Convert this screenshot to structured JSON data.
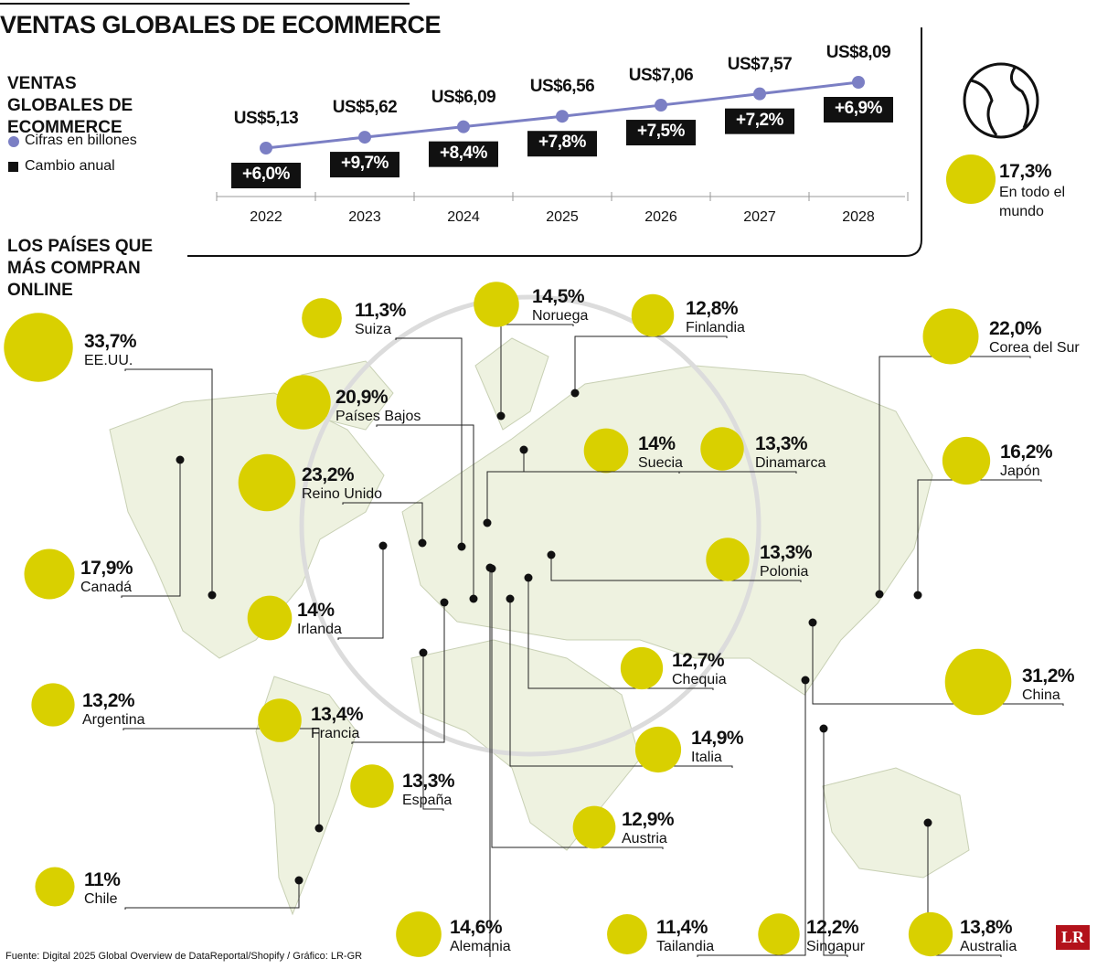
{
  "title": "VENTAS GLOBALES DE ECOMMERCE",
  "chart_data": [
    {
      "type": "line",
      "title": "VENTAS GLOBALES DE ECOMMERCE",
      "categories": [
        "2022",
        "2023",
        "2024",
        "2025",
        "2026",
        "2027",
        "2028"
      ],
      "series": [
        {
          "name": "Cifras en billones",
          "color": "#7b7fc4",
          "values": [
            5.13,
            5.62,
            6.09,
            6.56,
            7.06,
            7.57,
            8.09
          ],
          "value_labels": [
            "US$5,13",
            "US$5,62",
            "US$6,09",
            "US$6,56",
            "US$7,06",
            "US$7,57",
            "US$8,09"
          ]
        },
        {
          "name": "Cambio anual",
          "color": "#111111",
          "values": [
            6.0,
            9.7,
            8.4,
            7.8,
            7.5,
            7.2,
            6.9
          ],
          "value_labels": [
            "+6,0%",
            "+9,7%",
            "+8,4%",
            "+7,8%",
            "+7,5%",
            "+7,2%",
            "+6,9%"
          ]
        }
      ]
    },
    {
      "type": "bubble",
      "title": "LOS PAÍSES QUE MÁS COMPRAN ONLINE",
      "color": "#d9d000",
      "categories": [
        "En todo el mundo",
        "EE.UU.",
        "Suiza",
        "Noruega",
        "Finlandia",
        "Corea del Sur",
        "Países Bajos",
        "Reino Unido",
        "Suecia",
        "Dinamarca",
        "Japón",
        "Canadá",
        "Irlanda",
        "Polonia",
        "Chequia",
        "China",
        "Argentina",
        "Francia",
        "Italia",
        "España",
        "Austria",
        "Chile",
        "Alemania",
        "Tailandia",
        "Singapur",
        "Australia"
      ],
      "values": [
        17.3,
        33.7,
        11.3,
        14.5,
        12.8,
        22.0,
        20.9,
        23.2,
        14,
        13.3,
        16.2,
        17.9,
        14,
        13.3,
        12.7,
        31.2,
        13.2,
        13.4,
        14.9,
        13.3,
        12.9,
        11,
        14.6,
        11.4,
        12.2,
        13.8
      ],
      "value_labels": [
        "17,3%",
        "33,7%",
        "11,3%",
        "14,5%",
        "12,8%",
        "22,0%",
        "20,9%",
        "23,2%",
        "14%",
        "13,3%",
        "16,2%",
        "17,9%",
        "14%",
        "13,3%",
        "12,7%",
        "31,2%",
        "13,2%",
        "13,4%",
        "14,9%",
        "13,3%",
        "12,9%",
        "11%",
        "14,6%",
        "11,4%",
        "12,2%",
        "13,8%"
      ]
    }
  ],
  "source": "Fuente: Digital 2025 Global Overview de DataReportal/Shopify / Gráfico: LR-GR",
  "logo": "LR"
}
